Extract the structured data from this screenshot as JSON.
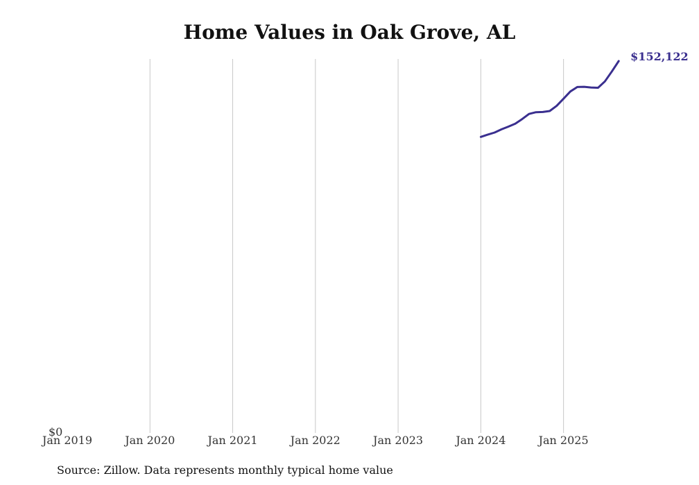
{
  "chart_data": {
    "type": "line",
    "title": "Home Values in Oak Grove, AL",
    "xlabel": "",
    "ylabel": "",
    "x_ticks": [
      {
        "label": "Jan 2019",
        "t": 2019.0
      },
      {
        "label": "Jan 2020",
        "t": 2020.0
      },
      {
        "label": "Jan 2021",
        "t": 2021.0
      },
      {
        "label": "Jan 2022",
        "t": 2022.0
      },
      {
        "label": "Jan 2023",
        "t": 2023.0
      },
      {
        "label": "Jan 2024",
        "t": 2024.0
      },
      {
        "label": "Jan 2025",
        "t": 2025.0
      }
    ],
    "y_tick_label": "$0",
    "xlim": [
      2019.0,
      2025.85
    ],
    "ylim": [
      0,
      152122
    ],
    "grid": "vertical",
    "series": [
      {
        "name": "Typical home value",
        "color": "#3a2f8f",
        "x": [
          2024.0,
          2024.083,
          2024.167,
          2024.25,
          2024.333,
          2024.417,
          2024.5,
          2024.583,
          2024.667,
          2024.75,
          2024.833,
          2024.917,
          2025.0,
          2025.083,
          2025.167,
          2025.25,
          2025.333,
          2025.417,
          2025.5,
          2025.583,
          2025.667
        ],
        "y": [
          121100,
          122000,
          122900,
          124200,
          125300,
          126500,
          128400,
          130500,
          131200,
          131300,
          131700,
          133800,
          136700,
          139700,
          141500,
          141600,
          141300,
          141200,
          143800,
          147800,
          152122
        ]
      }
    ],
    "end_label": "$152,122"
  },
  "source": "Source: Zillow. Data represents monthly typical home value"
}
